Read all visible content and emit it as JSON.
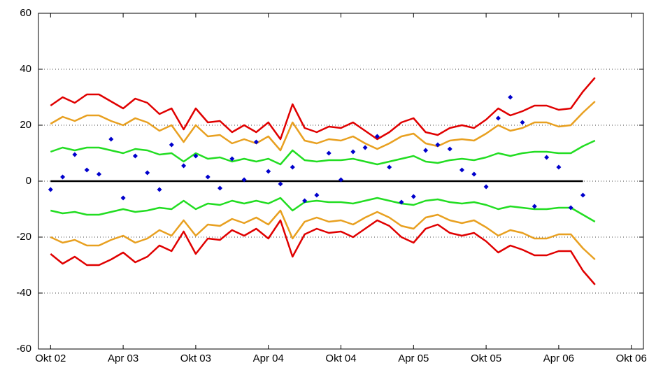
{
  "chart_data": {
    "type": "line",
    "x": [
      0,
      1,
      2,
      3,
      4,
      5,
      6,
      7,
      8,
      9,
      10,
      11,
      12,
      13,
      14,
      15,
      16,
      17,
      18,
      19,
      20,
      21,
      22,
      23,
      24,
      25,
      26,
      27,
      28,
      29,
      30,
      31,
      32,
      33,
      34,
      35,
      36,
      37,
      38,
      39,
      40,
      41,
      42,
      43,
      44,
      45
    ],
    "xlim": [
      -1,
      49
    ],
    "xticks": [
      {
        "value": 0,
        "label": "Okt 02"
      },
      {
        "value": 6,
        "label": "Apr 03"
      },
      {
        "value": 12,
        "label": "Okt 03"
      },
      {
        "value": 18,
        "label": "Apr 04"
      },
      {
        "value": 24,
        "label": "Okt 04"
      },
      {
        "value": 30,
        "label": "Apr 05"
      },
      {
        "value": 36,
        "label": "Okt 05"
      },
      {
        "value": 42,
        "label": "Apr 06"
      },
      {
        "value": 48,
        "label": "Okt 06"
      }
    ],
    "ylim": [
      -60,
      60
    ],
    "yticks": [
      60,
      40,
      20,
      0,
      -20,
      -40,
      -60
    ],
    "grid": true,
    "series": [
      {
        "style": "line",
        "color": "#e00000",
        "values": [
          27,
          30,
          28,
          31,
          31,
          28.5,
          26,
          29.5,
          28,
          24,
          26,
          18.5,
          26,
          21,
          21.5,
          17.5,
          20,
          17.5,
          21,
          15,
          27.5,
          19,
          17.5,
          19.5,
          19,
          21,
          18,
          15,
          17.5,
          21,
          22.5,
          17.5,
          16.5,
          19,
          20,
          19,
          22,
          26,
          23.5,
          25,
          27,
          27,
          25.5,
          26,
          32,
          37
        ]
      },
      {
        "style": "line",
        "color": "#e8a020",
        "values": [
          20.5,
          23,
          21.5,
          23.5,
          23.5,
          21.5,
          20,
          22.5,
          21,
          18,
          20,
          14,
          20,
          16,
          16.5,
          13.5,
          15,
          13.5,
          16,
          11,
          21,
          14.5,
          13.5,
          15,
          14.5,
          16,
          13.5,
          11.5,
          13.5,
          16,
          17,
          13.5,
          12.5,
          14.5,
          15,
          14.5,
          17,
          20,
          18,
          19,
          21,
          21,
          19.5,
          20,
          24.5,
          28.5
        ]
      },
      {
        "style": "line",
        "color": "#22dd22",
        "values": [
          10.5,
          12,
          11,
          12,
          12,
          11,
          10,
          11.5,
          11,
          9.5,
          10,
          7,
          10,
          8,
          8.5,
          7,
          8,
          7,
          8,
          6,
          11,
          7.5,
          7,
          7.5,
          7.5,
          8,
          7,
          6,
          7,
          8,
          9,
          7,
          6.5,
          7.5,
          8,
          7.5,
          8.5,
          10,
          9,
          10,
          10.5,
          10.5,
          10,
          10,
          12.5,
          14.5
        ]
      },
      {
        "style": "line",
        "color": "#22dd22",
        "values": [
          -10.5,
          -11.5,
          -11,
          -12,
          -12,
          -11,
          -10,
          -11,
          -10.5,
          -9.5,
          -10,
          -7,
          -10,
          -8,
          -8.5,
          -7,
          -8,
          -7,
          -8,
          -6,
          -10.5,
          -7.5,
          -7,
          -7.5,
          -7.5,
          -8,
          -7,
          -6,
          -7,
          -8,
          -8.5,
          -7,
          -6.5,
          -7.5,
          -8,
          -7.5,
          -8.5,
          -10,
          -9,
          -9.5,
          -10,
          -10,
          -9.5,
          -9.5,
          -12,
          -14.5
        ]
      },
      {
        "style": "line",
        "color": "#e8a020",
        "values": [
          -20,
          -22,
          -21,
          -23,
          -23,
          -21,
          -19.5,
          -22,
          -20.5,
          -17.5,
          -19.5,
          -14,
          -19.5,
          -15.5,
          -16,
          -13.5,
          -15,
          -13,
          -15.5,
          -10.5,
          -20.5,
          -14.5,
          -13,
          -14.5,
          -14,
          -15.5,
          -13,
          -11,
          -13,
          -16,
          -17,
          -13,
          -12,
          -14,
          -15,
          -14,
          -16.5,
          -19.5,
          -17.5,
          -18.5,
          -20.5,
          -20.5,
          -19,
          -19,
          -24,
          -28
        ]
      },
      {
        "style": "line",
        "color": "#e00000",
        "values": [
          -26,
          -29.5,
          -27,
          -30,
          -30,
          -28,
          -25.5,
          -29,
          -27,
          -23,
          -25,
          -18,
          -26,
          -20.5,
          -21,
          -17.5,
          -19.5,
          -17,
          -20.5,
          -14,
          -27,
          -19,
          -17,
          -18.5,
          -18,
          -20,
          -17,
          -14,
          -16,
          -20,
          -22,
          -17,
          -15.5,
          -18.5,
          -19.5,
          -18.5,
          -21.5,
          -25.5,
          -23,
          -24.5,
          -26.5,
          -26.5,
          -25,
          -25,
          -32,
          -37
        ]
      },
      {
        "style": "points",
        "color": "#0000cc",
        "x": [
          0,
          1,
          2,
          3,
          4,
          5,
          6,
          7,
          8,
          9,
          10,
          11,
          12,
          13,
          14,
          15,
          16,
          17,
          18,
          19,
          20,
          21,
          22,
          23,
          24,
          25,
          26,
          27,
          28,
          29,
          30,
          31,
          32,
          33,
          34,
          35,
          36,
          37,
          38,
          39,
          40,
          41,
          42,
          43,
          44
        ],
        "values": [
          -3,
          1.5,
          9.5,
          4,
          2.5,
          15,
          -6,
          9,
          3,
          -3,
          13,
          5.5,
          9,
          1.5,
          -2.5,
          8,
          0.5,
          14,
          3.5,
          -1,
          5,
          -7,
          -5,
          10,
          0.5,
          10.5,
          12,
          16,
          5,
          -7.5,
          -5.5,
          11,
          13,
          11.5,
          4,
          2.5,
          -2,
          22.5,
          30,
          21,
          -9,
          8.5,
          5,
          -9.5,
          -5
        ]
      }
    ]
  }
}
